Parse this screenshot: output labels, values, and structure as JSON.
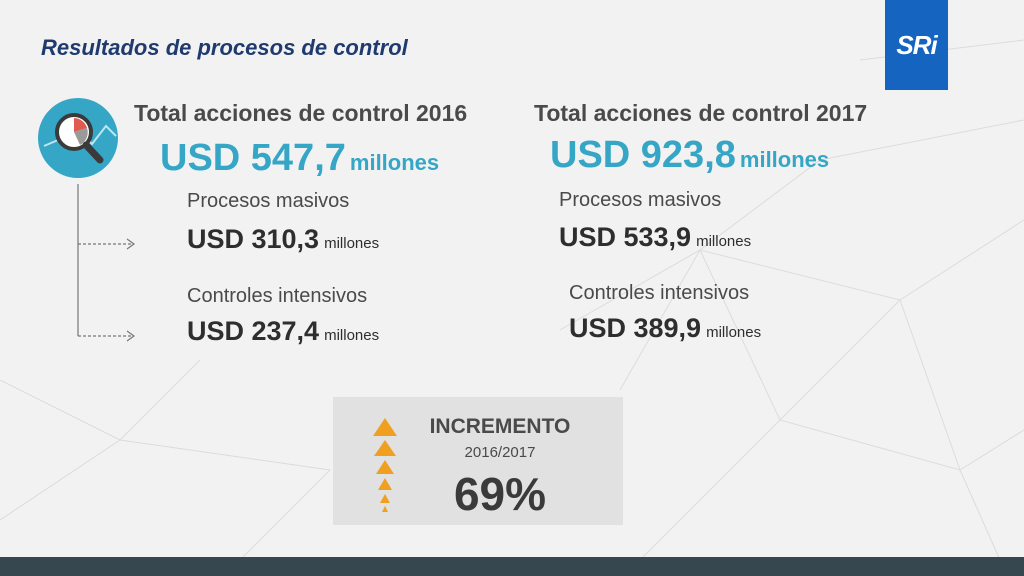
{
  "header": {
    "title": "Resultados de procesos de control"
  },
  "logo": {
    "text": "SRi"
  },
  "col2016": {
    "heading": "Total acciones de control 2016",
    "total_value": "USD 547,7",
    "total_unit": "millones",
    "masivos_label": "Procesos masivos",
    "masivos_value": "USD 310,3",
    "masivos_unit": "millones",
    "intensivos_label": "Controles intensivos",
    "intensivos_value": "USD 237,4",
    "intensivos_unit": "millones"
  },
  "col2017": {
    "heading": "Total acciones de control 2017",
    "total_value": "USD 923,8",
    "total_unit": "millones",
    "masivos_label": "Procesos masivos",
    "masivos_value": "USD 533,9",
    "masivos_unit": "millones",
    "intensivos_label": "Controles intensivos",
    "intensivos_value": "USD 389,9",
    "intensivos_unit": "millones"
  },
  "increment": {
    "title": "INCREMENTO",
    "years": "2016/2017",
    "percent": "69%"
  },
  "icons": {
    "analysis": "magnifier-chart-icon",
    "increase": "triangle-up-stack-icon"
  },
  "colors": {
    "accent": "#35a6c6",
    "title": "#1f3a6e",
    "logo_bg": "#1565c0",
    "arrow": "#f0a020",
    "footer": "#37474f"
  }
}
